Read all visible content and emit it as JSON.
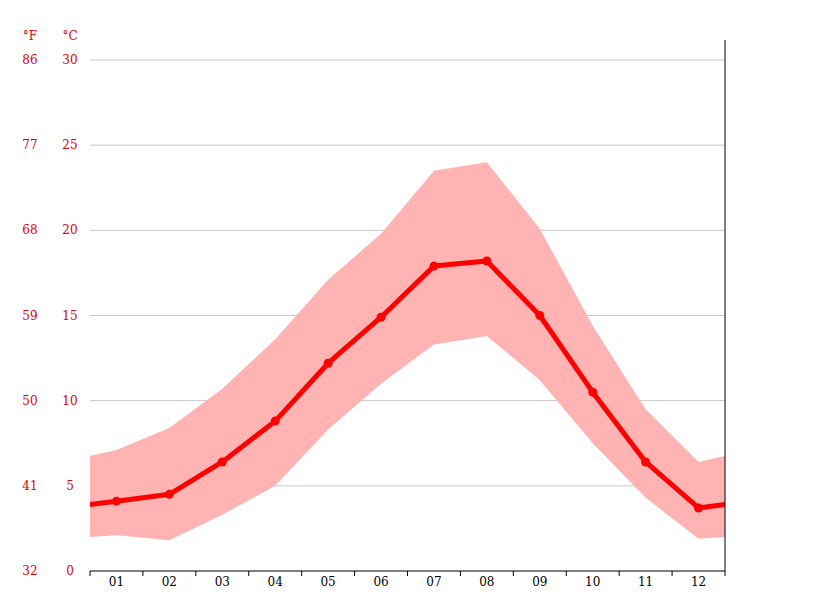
{
  "chart_data": {
    "type": "line",
    "y_label": "°C",
    "y2_label": "°F",
    "categories": [
      "01",
      "02",
      "03",
      "04",
      "05",
      "06",
      "07",
      "08",
      "09",
      "10",
      "11",
      "12"
    ],
    "series": [
      {
        "values": [
          4.1,
          4.5,
          6.4,
          8.8,
          12.2,
          14.9,
          17.9,
          18.2,
          15.0,
          10.5,
          6.4,
          3.7
        ],
        "color": "#ff0000",
        "type": "line",
        "marker": "circle"
      }
    ],
    "band": {
      "low": [
        2.1,
        1.8,
        3.3,
        5.0,
        8.3,
        11.0,
        13.3,
        13.8,
        11.2,
        7.5,
        4.3,
        1.9
      ],
      "high": [
        7.1,
        8.4,
        10.7,
        13.6,
        17.1,
        19.8,
        23.5,
        24.0,
        20.1,
        14.4,
        9.5,
        6.4
      ],
      "color": "#ffb3b3"
    },
    "ylim": [
      0,
      30
    ],
    "yticks": [
      0,
      5,
      10,
      15,
      20,
      25,
      30
    ],
    "y2lim": [
      32,
      86
    ],
    "y2ticks": [
      32,
      41,
      50,
      59,
      68,
      77,
      86
    ],
    "grid": true
  }
}
